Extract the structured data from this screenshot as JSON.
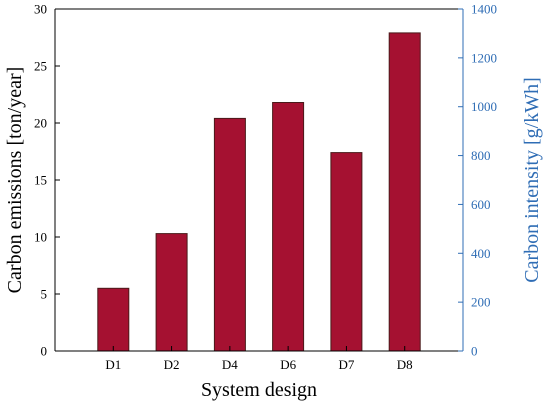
{
  "chart_data": {
    "type": "bar",
    "title": "",
    "xlabel": "System design",
    "ylabel": "Carbon emissions [ton/year]",
    "ylabel_right": "Carbon intensity [g/kWh]",
    "categories": [
      "D1",
      "D2",
      "D4",
      "D6",
      "D7",
      "D8"
    ],
    "series": [
      {
        "values": [
          5.5,
          10.3,
          20.4,
          21.8,
          17.4,
          27.9
        ]
      }
    ],
    "ylim": [
      0,
      30
    ],
    "ylim_right": [
      0,
      1400
    ],
    "yticks": [
      "0",
      "5",
      "10",
      "15",
      "20",
      "25",
      "30"
    ],
    "yticks_right": [
      "0",
      "200",
      "400",
      "600",
      "800",
      "1000",
      "1200",
      "1400"
    ],
    "grid": false,
    "colors": {
      "bar": "#a51131",
      "bar_edge": "#4a1a1a",
      "right_axis": "#2f6db5",
      "axis": "#000000"
    }
  }
}
